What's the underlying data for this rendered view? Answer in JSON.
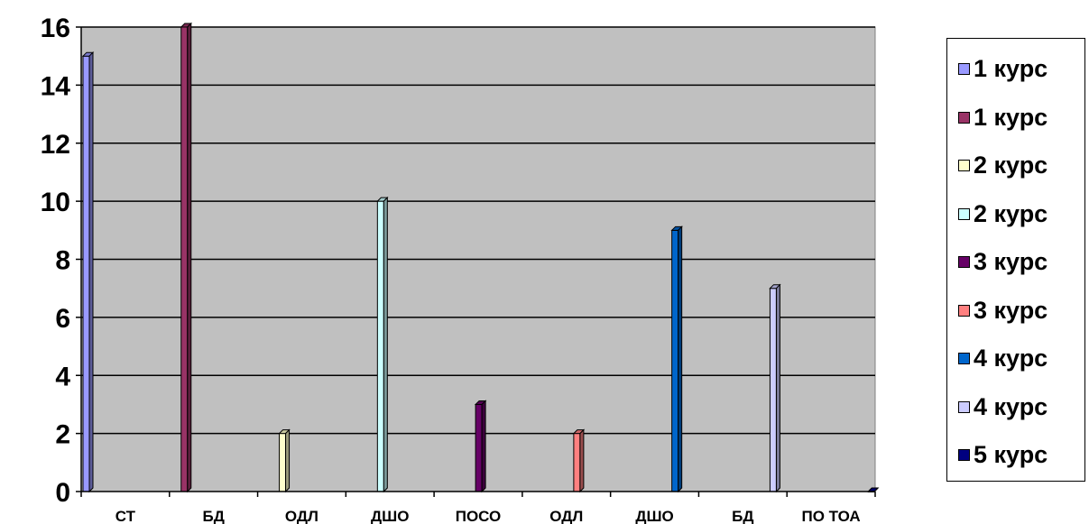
{
  "chart_data": {
    "type": "bar",
    "categories": [
      "СТ",
      "БД",
      "ОДЛ",
      "ДШО",
      "ПОСО",
      "ОДЛ",
      "ДШО",
      "БД",
      "ПО ТОА"
    ],
    "ylim": [
      0,
      16
    ],
    "yticks": [
      "0",
      "2",
      "4",
      "6",
      "8",
      "10",
      "12",
      "14",
      "16"
    ],
    "grid": true,
    "legend_position": "right",
    "plot_background": "#C0C0C0",
    "series": [
      {
        "name": "1 курс",
        "color": "#9999FF",
        "values": [
          15,
          null,
          null,
          null,
          null,
          null,
          null,
          null,
          null
        ]
      },
      {
        "name": "1 курс",
        "color": "#993366",
        "values": [
          null,
          16,
          null,
          null,
          null,
          null,
          null,
          null,
          null
        ]
      },
      {
        "name": "2 курс",
        "color": "#FFFFCC",
        "values": [
          null,
          null,
          2,
          null,
          null,
          null,
          null,
          null,
          null
        ]
      },
      {
        "name": "2 курс",
        "color": "#CCFFFF",
        "values": [
          null,
          null,
          null,
          10,
          null,
          null,
          null,
          null,
          null
        ]
      },
      {
        "name": "3 курс",
        "color": "#660066",
        "values": [
          null,
          null,
          null,
          null,
          3,
          null,
          null,
          null,
          null
        ]
      },
      {
        "name": "3 курс",
        "color": "#FF8080",
        "values": [
          null,
          null,
          null,
          null,
          null,
          2,
          null,
          null,
          null
        ]
      },
      {
        "name": "4 курс",
        "color": "#0066CC",
        "values": [
          null,
          null,
          null,
          null,
          null,
          null,
          9,
          null,
          null
        ]
      },
      {
        "name": "4 курс",
        "color": "#CCCCFF",
        "values": [
          null,
          null,
          null,
          null,
          null,
          null,
          null,
          7,
          null
        ]
      },
      {
        "name": "5 курс",
        "color": "#000080",
        "values": [
          null,
          null,
          null,
          null,
          null,
          null,
          null,
          null,
          0
        ]
      }
    ]
  }
}
